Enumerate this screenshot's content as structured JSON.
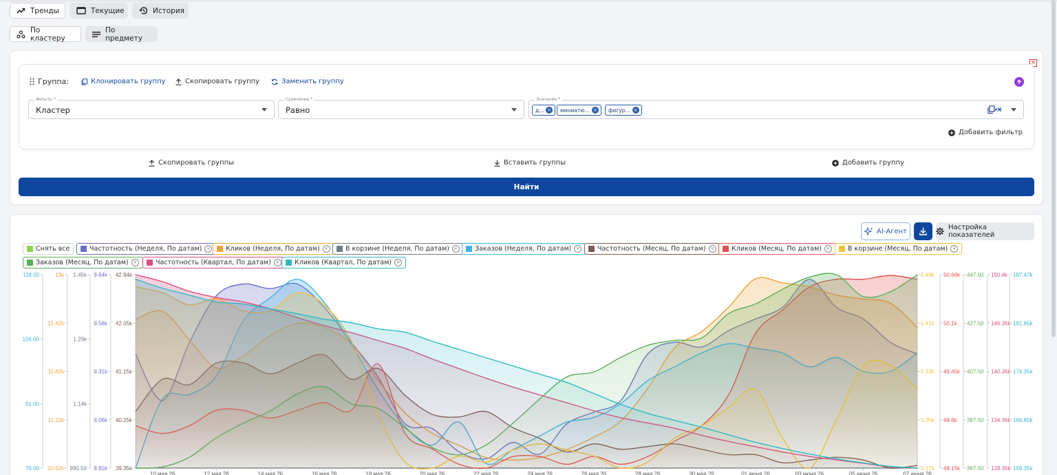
{
  "view_tabs": [
    {
      "label": "Тренды",
      "icon": "trend-icon",
      "selected": true
    },
    {
      "label": "Текущие",
      "icon": "window-icon",
      "selected": false
    },
    {
      "label": "История",
      "icon": "history-icon",
      "selected": false
    }
  ],
  "mode_tabs": [
    {
      "label": "По кластеру",
      "icon": "cluster-icon",
      "selected": true
    },
    {
      "label": "По предмету",
      "icon": "list-icon",
      "selected": false
    }
  ],
  "group": {
    "label": "Группа:",
    "clone": "Клонировать группу",
    "copy": "Скопировать группу",
    "replace": "Заменить группу",
    "filter": {
      "label": "Фильтр *",
      "value": "Кластер"
    },
    "compare": {
      "label": "Сравнение *",
      "value": "Равно"
    },
    "values": {
      "label": "Значение *",
      "chips": [
        "д...",
        "миниатю...",
        "фигур..."
      ]
    },
    "add_filter": "Добавить фильтр"
  },
  "group_actions": {
    "copy_groups": "Скопировать группы",
    "paste_groups": "Вставить группы",
    "add_group": "Добавить группу"
  },
  "find_label": "Найти",
  "chart_toolbar": {
    "ai_agent": "AI-Агент",
    "settings": "Настройка показателей"
  },
  "legend": [
    {
      "label": "Снять все",
      "color": "#8ed14f",
      "closable": false
    },
    {
      "label": "Частотность (Неделя, По датам)",
      "color": "#6a6fc2",
      "closable": true
    },
    {
      "label": "Кликов (Неделя, По датам)",
      "color": "#f0a33a",
      "closable": true
    },
    {
      "label": "В корзине (Неделя, По датам)",
      "color": "#6f7d86",
      "closable": true
    },
    {
      "label": "Заказов (Неделя, По датам)",
      "color": "#3fb4e2",
      "closable": true
    },
    {
      "label": "Частотность (Месяц, По датам)",
      "color": "#7a5c51",
      "closable": true
    },
    {
      "label": "Кликов (Месяц, По датам)",
      "color": "#e2534f",
      "closable": true
    },
    {
      "label": "В корзине (Месяц, По датам)",
      "color": "#f4c03c",
      "closable": true
    },
    {
      "label": "Заказов (Месяц, По датам)",
      "color": "#5cae57",
      "closable": true
    },
    {
      "label": "Частотность (Квартал, По датам)",
      "color": "#dc4f7b",
      "closable": true
    },
    {
      "label": "Кликов (Квартал, По датам)",
      "color": "#30b9c4",
      "closable": true
    }
  ],
  "chart_data": {
    "type": "area",
    "x": [
      "09 мая 26",
      "10 мая 26",
      "11 мая 26",
      "12 мая 26",
      "13 мая 26",
      "14 мая 26",
      "15 мая 26",
      "16 мая 26",
      "17 мая 26",
      "18 мая 26",
      "19 мая 26",
      "20 мая 26",
      "21 мая 26",
      "22 мая 26",
      "23 мая 26",
      "24 мая 26",
      "25 мая 26",
      "26 мая 26",
      "27 мая 26",
      "28 мая 26",
      "29 мая 26",
      "30 мая 26",
      "31 мая 26",
      "01 июня 26",
      "02 июня 26",
      "03 июня 26",
      "04 июня 26",
      "05 июня 26",
      "06 июня 26",
      "07 июня 26"
    ],
    "x_tick_labels": [
      "10 мая 26",
      "12 мая 26",
      "14 мая 26",
      "16 мая 26",
      "18 мая 26",
      "20 мая 26",
      "22 мая 26",
      "24 мая 26",
      "26 мая 26",
      "28 мая 26",
      "30 мая 26",
      "01 июня 26",
      "03 июня 26",
      "05 июня 26",
      "07 июня 26"
    ],
    "left_axes": [
      {
        "color": "#3fb4e2",
        "ticks": [
          "118.00",
          "106.00",
          "91.00",
          "76.00"
        ]
      },
      {
        "color": "#f0a33a",
        "ticks": [
          "13k",
          "12.42k",
          "11.82k",
          "11.22k",
          "10.62k"
        ]
      },
      {
        "color": "#6f7d86",
        "ticks": [
          "1.45k",
          "1.29k",
          "1.14k",
          "990.50"
        ]
      },
      {
        "color": "#6a6fc2",
        "ticks": [
          "9.64k",
          "9.56k",
          "9.31k",
          "9.06k",
          "8.81k"
        ]
      },
      {
        "color": "#7a5c51",
        "ticks": [
          "42.94k",
          "42.05k",
          "41.15k",
          "40.25k",
          "39.35k"
        ]
      }
    ],
    "right_axes": [
      {
        "color": "#f4c03c",
        "ticks": [
          "5.49k",
          "5.41k",
          "5.33k",
          "5.25k",
          "5.17k"
        ]
      },
      {
        "color": "#e2534f",
        "ticks": [
          "50.66k",
          "50.1k",
          "49.45k",
          "48.8k",
          "48.15k"
        ]
      },
      {
        "color": "#5cae57",
        "ticks": [
          "447.00",
          "427.50",
          "407.50",
          "387.50",
          "367.50"
        ]
      },
      {
        "color": "#dc4f7b",
        "ticks": [
          "150.4k",
          "146.36k",
          "140.36k",
          "134.36k",
          "128.36k"
        ]
      },
      {
        "color": "#30b9c4",
        "ticks": [
          "187.47k",
          "181.85k",
          "174.35k",
          "166.85k",
          "159.35k"
        ]
      }
    ],
    "series": [
      {
        "name": "Частотность (Неделя, По датам)",
        "color": "#6a6fc2",
        "values": [
          9.3,
          9.1,
          9.35,
          9.55,
          9.6,
          9.58,
          9.6,
          9.5,
          9.35,
          9.2,
          9.0,
          8.98,
          8.88,
          8.85,
          8.92,
          8.87,
          9.0,
          9.05,
          9.1,
          9.3,
          9.35,
          9.33,
          9.4,
          9.45,
          9.5,
          9.62,
          9.5,
          9.45,
          9.35,
          9.3
        ]
      },
      {
        "name": "Кликов (Неделя, По датам)",
        "color": "#f0a33a",
        "values": [
          12.45,
          12.55,
          12.2,
          11.85,
          12.0,
          12.25,
          12.4,
          12.35,
          12.15,
          11.7,
          11.3,
          11.05,
          10.9,
          10.75,
          10.72,
          10.75,
          10.85,
          11.0,
          11.2,
          11.6,
          12.1,
          12.3,
          12.6,
          12.95,
          12.9,
          12.85,
          12.75,
          12.7,
          12.65,
          12.35
        ]
      },
      {
        "name": "В корзине (Неделя, По датам)",
        "color": "#6f7d86",
        "values": [
          1.43,
          1.42,
          1.45,
          1.44,
          1.45,
          1.4,
          1.38,
          1.37,
          1.33,
          1.25,
          1.16,
          1.09,
          1.03,
          1.0,
          0.99,
          1.01,
          1.03,
          1.06,
          1.11,
          1.15,
          1.19,
          1.22,
          1.25,
          1.26,
          1.21,
          1.26,
          1.29,
          1.24,
          1.26,
          1.24
        ]
      },
      {
        "name": "Заказов (Неделя, По датам)",
        "color": "#3fb4e2",
        "values": [
          76,
          91,
          92,
          96,
          108,
          113,
          117,
          112,
          103,
          93,
          85,
          81,
          86,
          77,
          80,
          83,
          86,
          87,
          90,
          95,
          98,
          101,
          103,
          102,
          101,
          98,
          100,
          97,
          97,
          101
        ]
      },
      {
        "name": "Частотность (Месяц, По датам)",
        "color": "#7a5c51",
        "values": [
          40.4,
          41.0,
          40.9,
          41.3,
          41.3,
          41.1,
          41.3,
          41.45,
          41.0,
          41.2,
          40.7,
          40.35,
          40.3,
          40.4,
          40.1,
          39.9,
          39.65,
          39.8,
          39.7,
          39.75,
          39.8,
          39.7,
          39.6,
          39.6,
          39.45,
          39.5,
          39.55,
          39.5,
          39.35,
          39.4
        ]
      },
      {
        "name": "Кликов (Месяц, По датам)",
        "color": "#e2534f",
        "values": [
          48.7,
          48.6,
          48.7,
          48.9,
          48.9,
          48.8,
          48.9,
          49.0,
          48.9,
          49.5,
          48.6,
          48.4,
          48.2,
          48.15,
          48.3,
          48.3,
          48.2,
          48.3,
          48.2,
          48.3,
          48.5,
          48.7,
          49.1,
          49.9,
          50.2,
          50.5,
          50.6,
          50.6,
          50.65,
          50.6
        ]
      },
      {
        "name": "В корзине (Месяц, По датам)",
        "color": "#f4c03c",
        "values": [
          5.47,
          5.46,
          5.44,
          5.45,
          5.43,
          5.43,
          5.46,
          5.44,
          5.38,
          5.26,
          5.18,
          5.17,
          5.19,
          5.18,
          5.2,
          5.21,
          5.2,
          5.19,
          5.17,
          5.18,
          5.22,
          5.24,
          5.27,
          5.3,
          5.22,
          5.17,
          5.25,
          5.34,
          5.34,
          5.3
        ]
      },
      {
        "name": "Заказов (Месяц, По датам)",
        "color": "#5cae57",
        "values": [
          367.5,
          368,
          372,
          380,
          386,
          391,
          398,
          401,
          394,
          392,
          384,
          376,
          373,
          377,
          386,
          396,
          405,
          407,
          413,
          418,
          420,
          421,
          431,
          435,
          441,
          446,
          447,
          438,
          440,
          447
        ]
      },
      {
        "name": "Частотность (Квартал, По датам)",
        "color": "#dc4f7b",
        "values": [
          150.4,
          149.6,
          148.5,
          147.8,
          147.3,
          146.5,
          145.5,
          144.6,
          143.8,
          142.9,
          142.0,
          140.8,
          139.7,
          138.6,
          137.6,
          136.7,
          135.8,
          134.9,
          134.1,
          133.5,
          132.9,
          132.1,
          131.4,
          130.8,
          130.2,
          129.7,
          129.3,
          128.9,
          128.5,
          128.36
        ]
      },
      {
        "name": "Кликов (Квартал, По датам)",
        "color": "#30b9c4",
        "values": [
          186.8,
          185.5,
          184.5,
          183.5,
          183.2,
          182.5,
          181.8,
          181.0,
          180.5,
          179.6,
          179.1,
          177.8,
          176.6,
          175.4,
          174.2,
          173.0,
          171.8,
          170.2,
          168.6,
          167.3,
          166.3,
          165.3,
          164.2,
          163.1,
          162.2,
          161.4,
          160.7,
          160.1,
          159.6,
          159.35
        ]
      }
    ],
    "grid": false,
    "legend_placement": "top-left"
  }
}
